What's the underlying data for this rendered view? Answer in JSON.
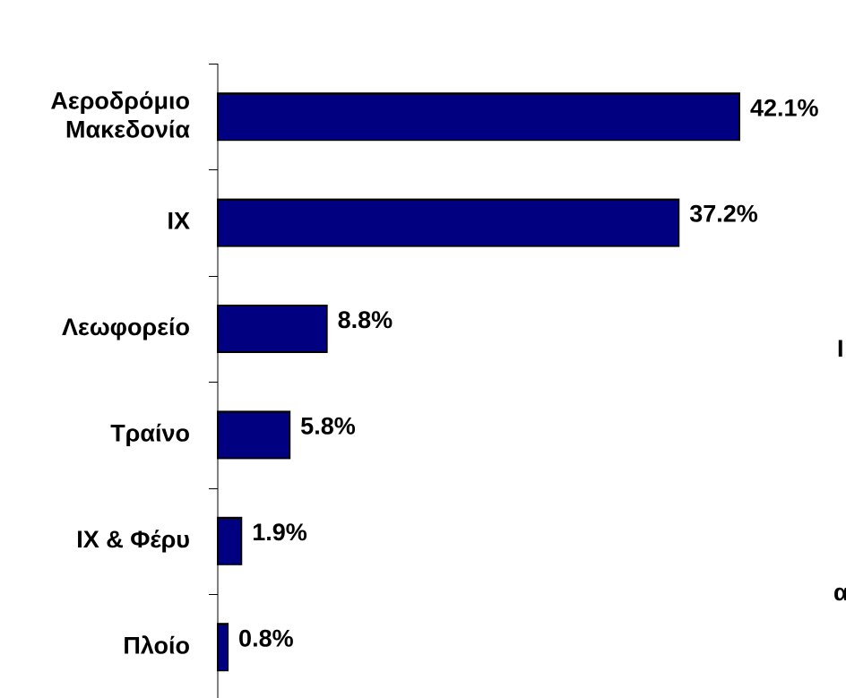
{
  "chart_data": {
    "type": "bar",
    "orientation": "horizontal",
    "categories": [
      [
        "Αεροδρόμιο",
        "Μακεδονία"
      ],
      [
        "ΙΧ"
      ],
      [
        "Λεωφορείο"
      ],
      [
        "Τραίνο"
      ],
      [
        "ΙΧ & Φέρυ"
      ],
      [
        "Πλοίο"
      ]
    ],
    "values": [
      42.1,
      37.2,
      8.8,
      5.8,
      1.9,
      0.8
    ],
    "value_labels": [
      "42.1%",
      "37.2%",
      "8.8%",
      "5.8%",
      "1.9%",
      "0.8%"
    ],
    "xlim": [
      0,
      50
    ],
    "grid": false,
    "legend": "none",
    "bar_color": "#000080",
    "bar_edge_color": "#000000",
    "clipped_text": [
      "Ι",
      "α"
    ]
  }
}
